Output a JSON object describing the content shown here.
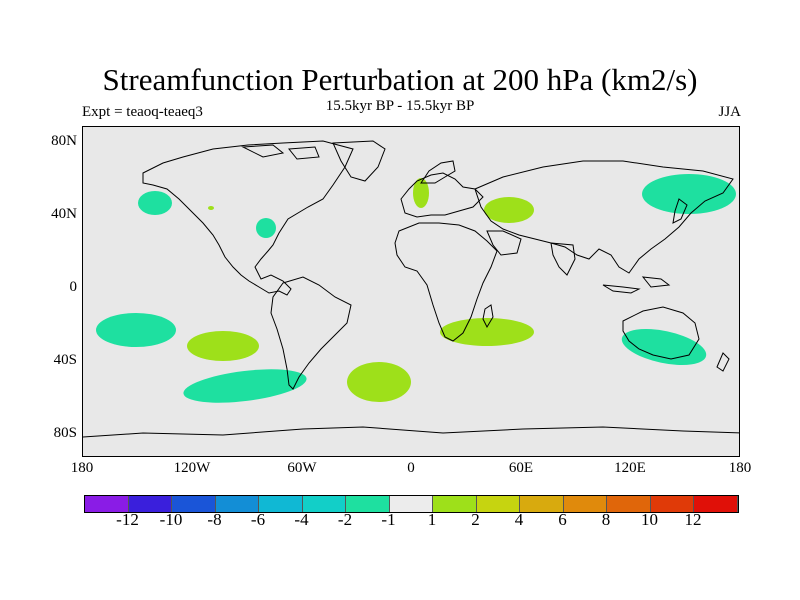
{
  "title": "Streamfunction Perturbation at 200 hPa (km2/s)",
  "left_subtitle": "Expt = teaoq-teaeq3",
  "center_subtitle": "15.5kyr BP - 15.5kyr BP",
  "right_subtitle": "JJA",
  "lat_labels": [
    "80N",
    "40N",
    "0",
    "40S",
    "80S"
  ],
  "lon_labels": [
    "180",
    "120W",
    "60W",
    "0",
    "60E",
    "120E",
    "180"
  ],
  "colorbar": {
    "colors": [
      "#8a1ce6",
      "#3a1fdc",
      "#1a55d8",
      "#138ed6",
      "#10b8d4",
      "#12cfc8",
      "#1ee0a0",
      "#ececec",
      "#9ee01a",
      "#c6d410",
      "#d8aa0e",
      "#e08a0c",
      "#e0660a",
      "#e03a08",
      "#e01008"
    ],
    "labels": [
      "-12",
      "-10",
      "-8",
      "-6",
      "-4",
      "-2",
      "-1",
      "1",
      "2",
      "4",
      "6",
      "8",
      "10",
      "12"
    ]
  },
  "colors": {
    "map_background": "#e8e8e8",
    "negative_fill": "#1ee0a0",
    "positive_fill": "#9ee01a"
  }
}
